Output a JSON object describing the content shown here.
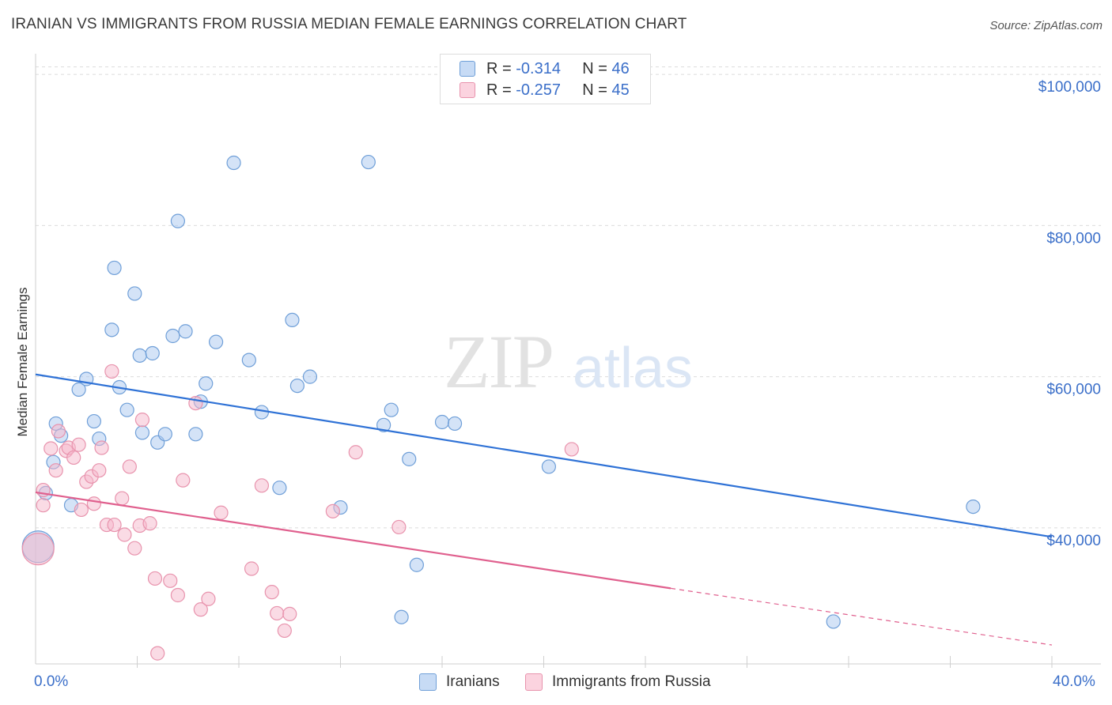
{
  "header": {
    "title": "IRANIAN VS IMMIGRANTS FROM RUSSIA MEDIAN FEMALE EARNINGS CORRELATION CHART",
    "source": "Source: ZipAtlas.com"
  },
  "watermark": {
    "zip": "ZIP",
    "atlas": "atlas"
  },
  "legend": {
    "rows": [
      {
        "r_label": "R =",
        "r_value": "-0.314",
        "n_label": "N =",
        "n_value": "46",
        "color": "#a9c8f0"
      },
      {
        "r_label": "R =",
        "r_value": "-0.257",
        "n_label": "N =",
        "n_value": "45",
        "color": "#f5b8cb"
      }
    ]
  },
  "chart_data": {
    "type": "scatter",
    "ylabel": "Median Female Earnings",
    "xlim": [
      0,
      40
    ],
    "ylim": [
      22000,
      102000
    ],
    "x_tick_labels": [
      "0.0%",
      "40.0%"
    ],
    "y_ticks": [
      40000,
      60000,
      80000,
      100000
    ],
    "y_tick_labels": [
      "$40,000",
      "$60,000",
      "$80,000",
      "$100,000"
    ],
    "grid": true,
    "legend_position": "top-center",
    "series": [
      {
        "name": "Iranians",
        "color": "#a9c8f0",
        "stroke": "#6f9fd8",
        "line_color": "#2f72d6",
        "trend": {
          "x0": 0,
          "y0": 60300,
          "x1": 40,
          "y1": 38800,
          "dashed_after": null
        },
        "points": [
          [
            0.4,
            44600
          ],
          [
            0.8,
            53800
          ],
          [
            0.7,
            48700
          ],
          [
            1.0,
            52200
          ],
          [
            1.4,
            43000
          ],
          [
            1.7,
            58300
          ],
          [
            2.0,
            59700
          ],
          [
            2.3,
            54100
          ],
          [
            2.5,
            51800
          ],
          [
            3.0,
            66200
          ],
          [
            3.1,
            74400
          ],
          [
            3.3,
            58600
          ],
          [
            3.6,
            55600
          ],
          [
            3.9,
            71000
          ],
          [
            4.1,
            62800
          ],
          [
            4.2,
            52600
          ],
          [
            4.6,
            63100
          ],
          [
            4.8,
            51300
          ],
          [
            5.1,
            52400
          ],
          [
            5.4,
            65400
          ],
          [
            5.6,
            80600
          ],
          [
            5.9,
            66000
          ],
          [
            6.3,
            52400
          ],
          [
            6.5,
            56700
          ],
          [
            6.7,
            59100
          ],
          [
            7.1,
            64600
          ],
          [
            7.8,
            88300
          ],
          [
            8.4,
            62200
          ],
          [
            8.9,
            55300
          ],
          [
            9.6,
            45300
          ],
          [
            10.1,
            67500
          ],
          [
            10.3,
            58800
          ],
          [
            10.8,
            60000
          ],
          [
            12.0,
            42700
          ],
          [
            13.1,
            88400
          ],
          [
            13.7,
            53600
          ],
          [
            14.0,
            55600
          ],
          [
            14.4,
            28200
          ],
          [
            14.7,
            49100
          ],
          [
            15.0,
            35100
          ],
          [
            16.0,
            54000
          ],
          [
            16.5,
            53800
          ],
          [
            20.2,
            48100
          ],
          [
            31.4,
            27600
          ],
          [
            36.9,
            42800
          ],
          [
            0.1,
            37500
          ]
        ]
      },
      {
        "name": "Immigrants from Russia",
        "color": "#f5b8cb",
        "stroke": "#e893ad",
        "line_color": "#e0608e",
        "trend": {
          "x0": 0,
          "y0": 44700,
          "x1": 25,
          "y1": 32000,
          "dashed_after": 40,
          "y_end": 24500
        },
        "points": [
          [
            0.3,
            45000
          ],
          [
            0.3,
            43000
          ],
          [
            0.6,
            50500
          ],
          [
            0.8,
            47600
          ],
          [
            0.9,
            52800
          ],
          [
            1.2,
            50200
          ],
          [
            1.3,
            50600
          ],
          [
            1.5,
            49300
          ],
          [
            1.7,
            51000
          ],
          [
            1.8,
            42400
          ],
          [
            2.0,
            46100
          ],
          [
            2.2,
            46800
          ],
          [
            2.3,
            43200
          ],
          [
            2.5,
            47600
          ],
          [
            2.6,
            50600
          ],
          [
            2.8,
            40400
          ],
          [
            3.0,
            60700
          ],
          [
            3.1,
            40400
          ],
          [
            3.4,
            43900
          ],
          [
            3.5,
            39100
          ],
          [
            3.7,
            48100
          ],
          [
            3.9,
            37300
          ],
          [
            4.1,
            40300
          ],
          [
            4.2,
            54300
          ],
          [
            4.5,
            40600
          ],
          [
            4.7,
            33300
          ],
          [
            4.8,
            23400
          ],
          [
            5.3,
            33000
          ],
          [
            5.6,
            31100
          ],
          [
            5.8,
            46300
          ],
          [
            6.3,
            56500
          ],
          [
            6.5,
            29200
          ],
          [
            6.8,
            30600
          ],
          [
            7.3,
            42000
          ],
          [
            8.5,
            34600
          ],
          [
            8.9,
            45600
          ],
          [
            9.3,
            31500
          ],
          [
            9.5,
            28700
          ],
          [
            9.8,
            26400
          ],
          [
            10.0,
            28600
          ],
          [
            11.7,
            42200
          ],
          [
            12.6,
            50000
          ],
          [
            14.3,
            40100
          ],
          [
            21.1,
            50400
          ],
          [
            0.1,
            37200
          ]
        ]
      }
    ]
  }
}
